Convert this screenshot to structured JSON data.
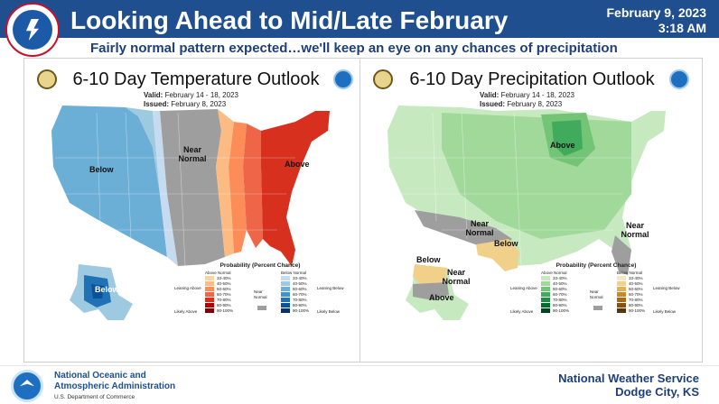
{
  "header": {
    "title": "Looking Ahead to Mid/Late February",
    "date": "February 9, 2023",
    "time": "3:18 AM",
    "subtitle": "Fairly normal pattern expected…we'll keep an eye on any chances of precipitation",
    "bar_color": "#1f4f8f"
  },
  "temperature_panel": {
    "title": "6-10 Day Temperature Outlook",
    "valid_label": "Valid:",
    "valid_value": "February 14 - 18, 2023",
    "issued_label": "Issued:",
    "issued_value": "February 8, 2023",
    "labels": {
      "west": "Below",
      "central": "Near Normal",
      "east": "Above",
      "alaska": "Below"
    },
    "legend": {
      "title": "Probability (Percent Chance)",
      "above_header": "Above Normal",
      "below_header": "Below Normal",
      "leaning_above": "Leaning Above",
      "likely_above": "Likely Above",
      "near_normal": "Near Normal",
      "leaning_below": "Leaning Below",
      "likely_below": "Likely Below",
      "ranges": [
        "33-40%",
        "40-50%",
        "50-60%",
        "60-70%",
        "70-80%",
        "80-90%",
        "90-100%"
      ]
    }
  },
  "precipitation_panel": {
    "title": "6-10 Day Precipitation Outlook",
    "valid_label": "Valid:",
    "valid_value": "February 14 - 18, 2023",
    "issued_label": "Issued:",
    "issued_value": "February 8, 2023",
    "labels": {
      "great_lakes": "Above",
      "southern_plains_near": "Near Normal",
      "south_texas": "Below",
      "southeast_near": "Near Normal",
      "alaska_below_top": "Below",
      "alaska_near": "Near Normal",
      "alaska_below_bottom": "Above"
    },
    "legend": {
      "title": "Probability (Percent Chance)",
      "above_header": "Above Normal",
      "below_header": "Below Normal",
      "leaning_above": "Leaning Above",
      "likely_above": "Likely Above",
      "near_normal": "Near Normal",
      "leaning_below": "Leaning Below",
      "likely_below": "Likely Below",
      "ranges": [
        "33-40%",
        "40-50%",
        "50-60%",
        "60-70%",
        "70-80%",
        "80-90%",
        "90-100%"
      ]
    }
  },
  "footer": {
    "org_line1": "National Oceanic and",
    "org_line2": "Atmospheric Administration",
    "org_dept": "U.S. Department of Commerce",
    "office_line1": "National Weather Service",
    "office_line2": "Dodge City, KS"
  },
  "icons": [
    "nws-logo-icon",
    "doc-seal-icon",
    "noaa-seal-icon",
    "noaa-logo-icon"
  ],
  "colors": {
    "below_temp": [
      "#c6dbef",
      "#9ecae1",
      "#6baed6",
      "#4292c6",
      "#2171b5",
      "#08519c",
      "#08306b"
    ],
    "above_temp": [
      "#fdd49e",
      "#fdbb84",
      "#fc8d59",
      "#ef6548",
      "#d7301f",
      "#b30000",
      "#7f0000"
    ],
    "above_precip": [
      "#c7e9c0",
      "#a1d99b",
      "#74c476",
      "#41ab5d",
      "#238b45",
      "#006d2c",
      "#00441b"
    ],
    "below_precip": [
      "#f6e8c3",
      "#f1d08a",
      "#dfb25a",
      "#c68a2c",
      "#a66a18",
      "#86510c",
      "#5a3505"
    ],
    "near_normal": "#9e9e9e"
  }
}
